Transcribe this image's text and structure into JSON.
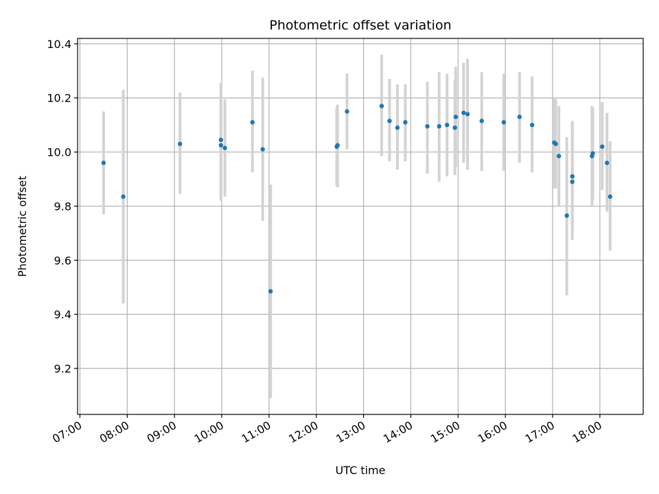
{
  "chart_data": {
    "type": "scatter",
    "title": "Photometric offset variation",
    "xlabel": "UTC time",
    "ylabel": "Photometric offset",
    "x_unit": "hours UTC",
    "xlim": [
      "06:57",
      "18:55"
    ],
    "ylim": [
      9.03,
      10.42
    ],
    "grid": true,
    "x_ticks": [
      "07:00",
      "08:00",
      "09:00",
      "10:00",
      "11:00",
      "12:00",
      "13:00",
      "14:00",
      "15:00",
      "16:00",
      "17:00",
      "18:00"
    ],
    "y_ticks": [
      "9.2",
      "9.4",
      "9.6",
      "9.8",
      "10.0",
      "10.2",
      "10.4"
    ],
    "colors": {
      "point": "#1f77b4",
      "errorbar": "#d3d3d3",
      "grid": "#b0b0b0"
    },
    "series": [
      {
        "points": [
          {
            "x": "07:30",
            "y": 9.96,
            "ylo": 9.77,
            "yhi": 10.15
          },
          {
            "x": "07:55",
            "y": 9.835,
            "ylo": 9.44,
            "yhi": 10.23
          },
          {
            "x": "09:07",
            "y": 10.03,
            "ylo": 9.845,
            "yhi": 10.22
          },
          {
            "x": "09:59",
            "y": 10.045,
            "ylo": 9.84,
            "yhi": 10.255
          },
          {
            "x": "09:59",
            "y": 10.025,
            "ylo": 9.82,
            "yhi": 10.23
          },
          {
            "x": "10:04",
            "y": 10.015,
            "ylo": 9.835,
            "yhi": 10.195
          },
          {
            "x": "10:39",
            "y": 10.11,
            "ylo": 9.925,
            "yhi": 10.3
          },
          {
            "x": "10:52",
            "y": 10.01,
            "ylo": 9.745,
            "yhi": 10.275
          },
          {
            "x": "11:02",
            "y": 9.485,
            "ylo": 9.09,
            "yhi": 9.88
          },
          {
            "x": "12:26",
            "y": 10.02,
            "ylo": 9.875,
            "yhi": 10.165
          },
          {
            "x": "12:27",
            "y": 10.025,
            "ylo": 9.87,
            "yhi": 10.175
          },
          {
            "x": "12:39",
            "y": 10.15,
            "ylo": 10.01,
            "yhi": 10.29
          },
          {
            "x": "13:23",
            "y": 10.17,
            "ylo": 9.985,
            "yhi": 10.36
          },
          {
            "x": "13:33",
            "y": 10.115,
            "ylo": 9.965,
            "yhi": 10.27
          },
          {
            "x": "13:43",
            "y": 10.09,
            "ylo": 9.935,
            "yhi": 10.25
          },
          {
            "x": "13:53",
            "y": 10.11,
            "ylo": 9.965,
            "yhi": 10.25
          },
          {
            "x": "14:21",
            "y": 10.095,
            "ylo": 9.92,
            "yhi": 10.26
          },
          {
            "x": "14:36",
            "y": 10.095,
            "ylo": 9.89,
            "yhi": 10.295
          },
          {
            "x": "14:46",
            "y": 10.1,
            "ylo": 9.91,
            "yhi": 10.29
          },
          {
            "x": "14:56",
            "y": 10.09,
            "ylo": 9.915,
            "yhi": 10.265
          },
          {
            "x": "14:57",
            "y": 10.13,
            "ylo": 9.945,
            "yhi": 10.315
          },
          {
            "x": "15:07",
            "y": 10.145,
            "ylo": 9.96,
            "yhi": 10.33
          },
          {
            "x": "15:12",
            "y": 10.14,
            "ylo": 9.935,
            "yhi": 10.345
          },
          {
            "x": "15:30",
            "y": 10.115,
            "ylo": 9.93,
            "yhi": 10.295
          },
          {
            "x": "15:58",
            "y": 10.11,
            "ylo": 9.93,
            "yhi": 10.29
          },
          {
            "x": "16:18",
            "y": 10.13,
            "ylo": 9.96,
            "yhi": 10.295
          },
          {
            "x": "16:34",
            "y": 10.1,
            "ylo": 9.925,
            "yhi": 10.28
          },
          {
            "x": "17:02",
            "y": 10.035,
            "ylo": 9.865,
            "yhi": 10.2
          },
          {
            "x": "17:04",
            "y": 10.03,
            "ylo": 9.865,
            "yhi": 10.195
          },
          {
            "x": "17:08",
            "y": 9.985,
            "ylo": 9.8,
            "yhi": 10.17
          },
          {
            "x": "17:18",
            "y": 9.765,
            "ylo": 9.47,
            "yhi": 10.055
          },
          {
            "x": "17:25",
            "y": 9.91,
            "ylo": 9.71,
            "yhi": 10.115
          },
          {
            "x": "17:25",
            "y": 9.89,
            "ylo": 9.675,
            "yhi": 10.105
          },
          {
            "x": "17:50",
            "y": 9.985,
            "ylo": 9.8,
            "yhi": 10.17
          },
          {
            "x": "17:51",
            "y": 9.995,
            "ylo": 9.825,
            "yhi": 10.165
          },
          {
            "x": "18:03",
            "y": 10.02,
            "ylo": 9.86,
            "yhi": 10.185
          },
          {
            "x": "18:09",
            "y": 9.96,
            "ylo": 9.78,
            "yhi": 10.145
          },
          {
            "x": "18:13",
            "y": 9.835,
            "ylo": 9.635,
            "yhi": 10.04
          }
        ]
      }
    ]
  }
}
